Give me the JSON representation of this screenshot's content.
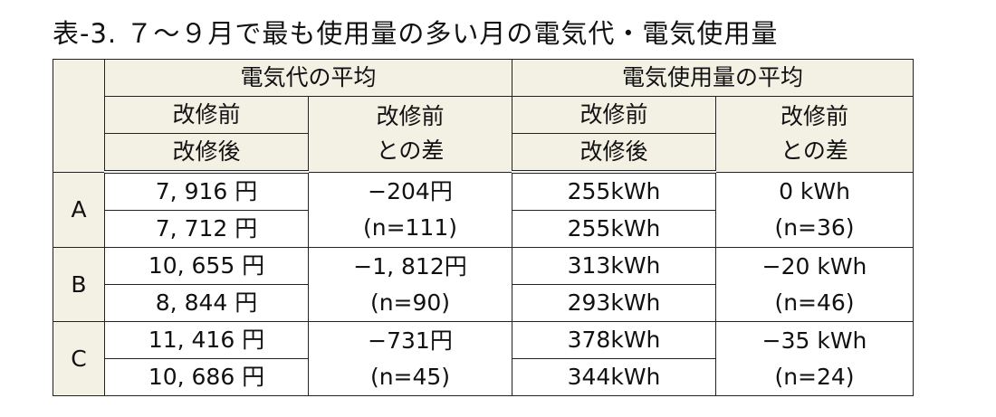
{
  "title": "表-3.  ７～９月で最も使用量の多い月の電気代・電気使用量",
  "table": {
    "groups": [
      "電気代の平均",
      "電気使用量の平均"
    ],
    "subheaders": [
      [
        "改修前",
        "改修後"
      ],
      [
        "改修前",
        "との差"
      ],
      [
        "改修前",
        "改修後"
      ],
      [
        "改修前",
        "との差"
      ]
    ],
    "rows": [
      {
        "label": "A",
        "cells": [
          [
            "7, 916 円",
            "7, 712 円"
          ],
          [
            "−204円",
            "(n=111)"
          ],
          [
            "255kWh",
            "255kWh"
          ],
          [
            "0  kWh",
            "(n=36)"
          ]
        ]
      },
      {
        "label": "B",
        "cells": [
          [
            "10, 655 円",
            "8, 844 円"
          ],
          [
            "−1, 812円",
            "(n=90)"
          ],
          [
            "313kWh",
            "293kWh"
          ],
          [
            "−20  kWh",
            "(n=46)"
          ]
        ]
      },
      {
        "label": "C",
        "cells": [
          [
            "11, 416 円",
            "10, 686 円"
          ],
          [
            "−731円",
            "(n=45)"
          ],
          [
            "378kWh",
            "344kWh"
          ],
          [
            "−35  kWh",
            "(n=24)"
          ]
        ]
      }
    ]
  }
}
